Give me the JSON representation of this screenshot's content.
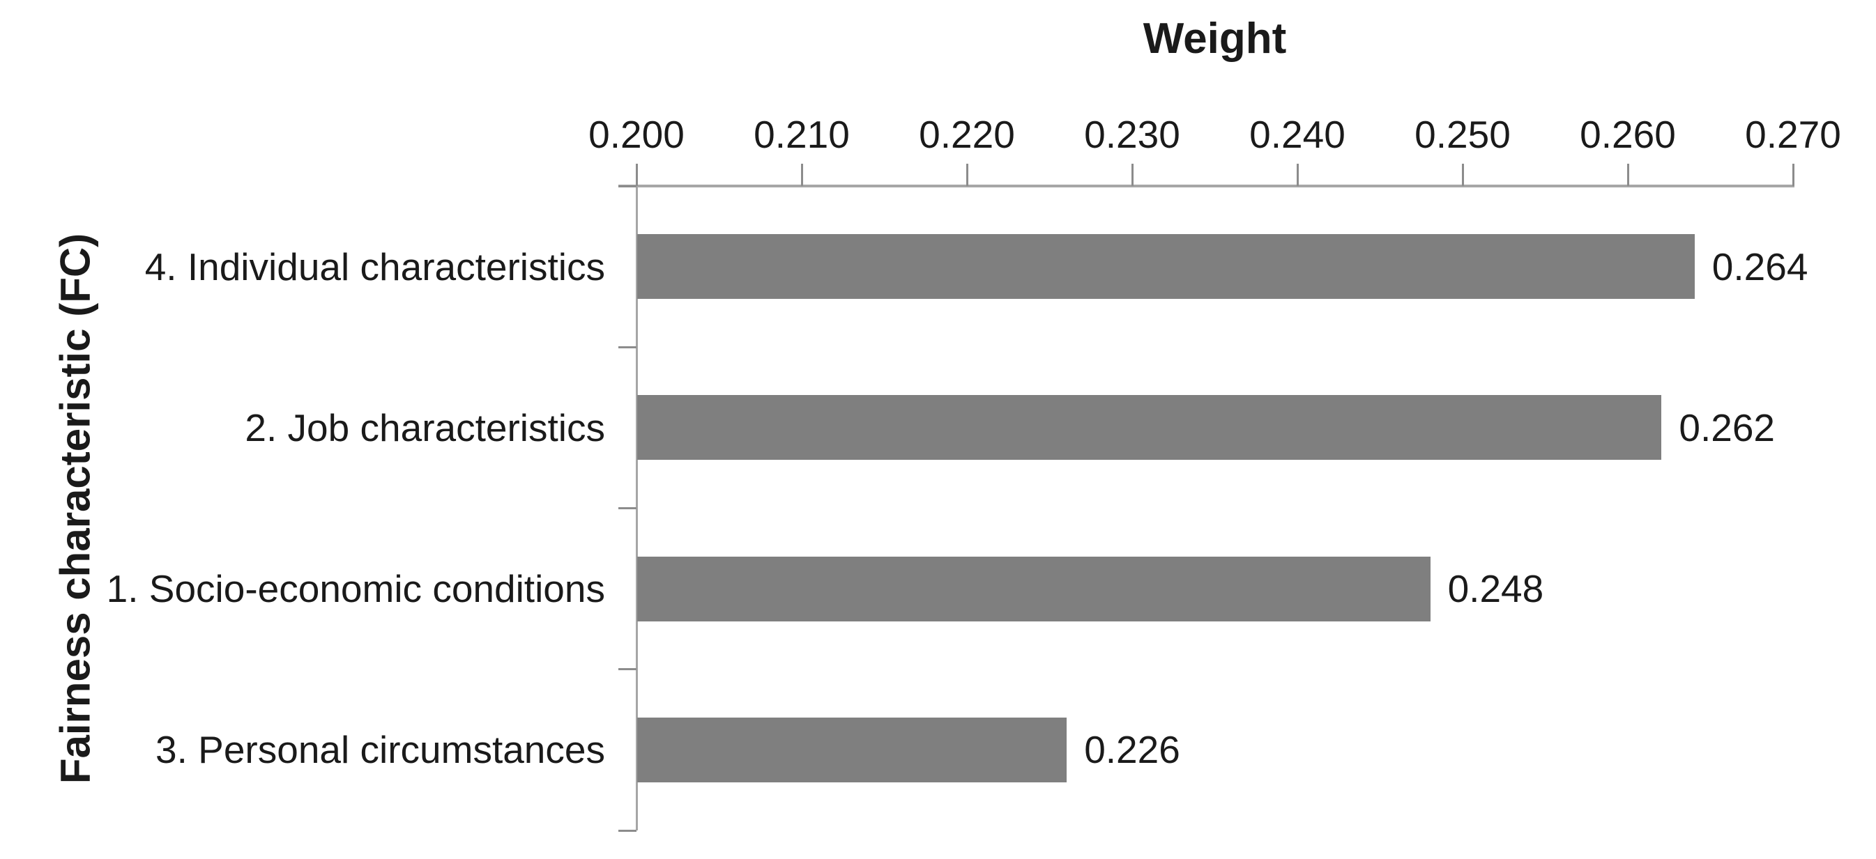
{
  "chart_data": {
    "type": "bar",
    "orientation": "horizontal",
    "title": "Weight",
    "xlabel": "Weight",
    "ylabel": "Fairness characteristic (FC)",
    "categories": [
      "4. Individual characteristics",
      "2. Job characteristics",
      "1. Socio-economic conditions",
      "3. Personal circumstances"
    ],
    "values": [
      0.264,
      0.262,
      0.248,
      0.226
    ],
    "value_labels": [
      "0.264",
      "0.262",
      "0.248",
      "0.226"
    ],
    "xlim": [
      0.2,
      0.27
    ],
    "xticks": [
      "0.200",
      "0.210",
      "0.220",
      "0.230",
      "0.240",
      "0.250",
      "0.260",
      "0.270"
    ],
    "xtick_values": [
      0.2,
      0.21,
      0.22,
      0.23,
      0.24,
      0.25,
      0.26,
      0.27
    ],
    "grid": false,
    "legend": "none",
    "data_labels": true,
    "bar_color": "#7f7f7f",
    "axis_line_color": "#a6a6a6",
    "tick_color": "#8c8c8c",
    "text_color": "#1a1a1a"
  }
}
